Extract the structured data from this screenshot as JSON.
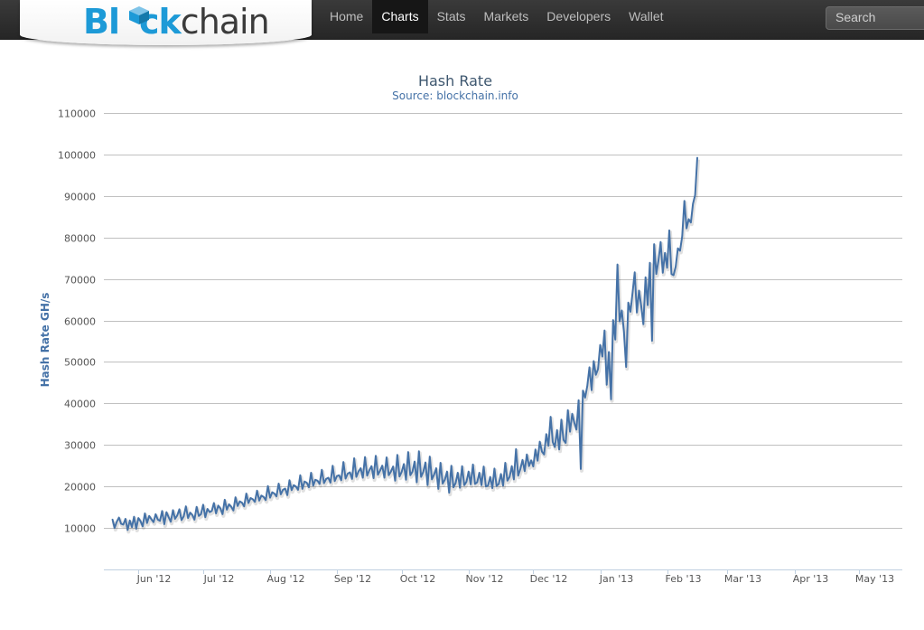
{
  "navbar": {
    "brand_prefix": "Bl",
    "brand_mid": "ck",
    "brand_suffix": "chain",
    "items": [
      {
        "label": "Home",
        "active": false
      },
      {
        "label": "Charts",
        "active": true
      },
      {
        "label": "Stats",
        "active": false
      },
      {
        "label": "Markets",
        "active": false
      },
      {
        "label": "Developers",
        "active": false
      },
      {
        "label": "Wallet",
        "active": false
      }
    ],
    "search_placeholder": "Search"
  },
  "colors": {
    "brand_blue": "#1d9ad7",
    "series_line": "#4572a7",
    "title": "#3e576f"
  },
  "chart_data": {
    "type": "line",
    "title": "Hash Rate",
    "subtitle": "Source: blockchain.info",
    "ylabel": "Hash Rate GH/s",
    "xlabel": "",
    "ylim": [
      0,
      110000
    ],
    "yticks": [
      10000,
      20000,
      30000,
      40000,
      50000,
      60000,
      70000,
      80000,
      90000,
      100000,
      110000
    ],
    "xlim": [
      "2012-05-16",
      "2013-05-21"
    ],
    "xticks": [
      {
        "label": "Jun '12",
        "date": "2012-06-01"
      },
      {
        "label": "Jul '12",
        "date": "2012-07-01"
      },
      {
        "label": "Aug '12",
        "date": "2012-08-01"
      },
      {
        "label": "Sep '12",
        "date": "2012-09-01"
      },
      {
        "label": "Oct '12",
        "date": "2012-10-01"
      },
      {
        "label": "Nov '12",
        "date": "2012-11-01"
      },
      {
        "label": "Dec '12",
        "date": "2012-12-01"
      },
      {
        "label": "Jan '13",
        "date": "2013-01-01"
      },
      {
        "label": "Feb '13",
        "date": "2013-02-01"
      },
      {
        "label": "Mar '13",
        "date": "2013-03-01"
      },
      {
        "label": "Apr '13",
        "date": "2013-04-01"
      },
      {
        "label": "May '13",
        "date": "2013-05-01"
      }
    ],
    "grid": true,
    "legend": "none",
    "series": [
      {
        "x_start": "2012-05-20",
        "x_step_days": 1,
        "values": [
          12000,
          10000,
          11500,
          12500,
          11000,
          10800,
          12200,
          9500,
          11800,
          10200,
          12700,
          9800,
          12400,
          11600,
          10400,
          13500,
          11200,
          12900,
          12100,
          11400,
          13300,
          12000,
          11700,
          14100,
          10900,
          13800,
          12600,
          11500,
          14300,
          12200,
          13000,
          14500,
          11900,
          12800,
          15200,
          12400,
          13700,
          13100,
          12000,
          15100,
          12900,
          13300,
          15600,
          12600,
          14600,
          13800,
          14100,
          16000,
          13500,
          15400,
          14700,
          13300,
          16800,
          14400,
          15700,
          15100,
          14200,
          17400,
          15300,
          16400,
          16100,
          15200,
          18300,
          16000,
          17200,
          16900,
          16300,
          19000,
          16600,
          17800,
          17500,
          16700,
          20100,
          17300,
          18600,
          18300,
          17600,
          20700,
          18100,
          19200,
          19500,
          17900,
          21500,
          19100,
          20300,
          20000,
          19200,
          22700,
          19400,
          21200,
          20900,
          19800,
          23300,
          20200,
          21600,
          21400,
          20600,
          24000,
          20800,
          21800,
          22100,
          20900,
          25000,
          21300,
          22500,
          22700,
          21500,
          25900,
          21900,
          23100,
          23400,
          21800,
          26800,
          22300,
          23600,
          24400,
          22100,
          27100,
          22600,
          23900,
          24900,
          22000,
          27400,
          22800,
          23800,
          25000,
          22100,
          27000,
          22700,
          23600,
          24800,
          21400,
          27600,
          22400,
          23500,
          25400,
          21600,
          28300,
          22700,
          23600,
          26000,
          21000,
          28500,
          22300,
          23500,
          25800,
          20300,
          27200,
          21700,
          22800,
          24400,
          19400,
          25700,
          20700,
          21600,
          23600,
          18500,
          25000,
          19800,
          20800,
          23300,
          19700,
          24900,
          20300,
          21100,
          23600,
          20500,
          25300,
          20600,
          21000,
          23300,
          20300,
          24800,
          20000,
          20200,
          22300,
          19600,
          24300,
          20100,
          20600,
          23000,
          20200,
          25700,
          21400,
          22300,
          24900,
          21700,
          29000,
          22600,
          24200,
          26400,
          23700,
          27700,
          24900,
          26300,
          24800,
          28900,
          26200,
          30800,
          28400,
          27700,
          32600,
          29800,
          36800,
          30700,
          29500,
          33600,
          28900,
          36100,
          31200,
          30500,
          38400,
          33200,
          37500,
          35400,
          33700,
          40800,
          24200,
          43100,
          41400,
          44200,
          48700,
          43200,
          50200,
          46900,
          48300,
          54100,
          51300,
          57600,
          44500,
          52400,
          41000,
          60100,
          55400,
          73500,
          59800,
          62400,
          57300,
          48800,
          64300,
          62100,
          66800,
          71600,
          61900,
          67200,
          63500,
          59100,
          70400,
          63700,
          73900,
          55100,
          78400,
          71200,
          74400,
          78900,
          71500,
          76300,
          72700,
          81700,
          71200,
          70900,
          73000,
          77400,
          76800,
          80300,
          88800,
          82200,
          84400,
          83600,
          88100,
          90200,
          99200
        ]
      }
    ]
  }
}
